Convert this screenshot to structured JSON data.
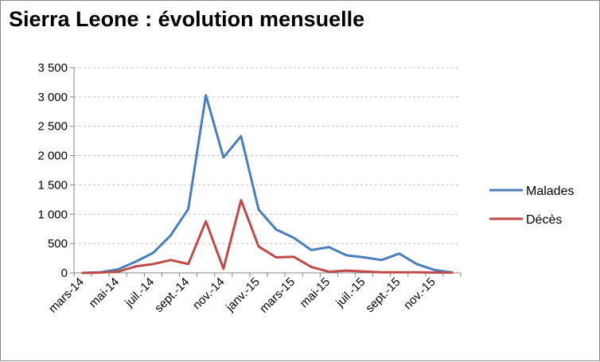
{
  "chart_data": {
    "type": "line",
    "title": "Sierra Leone : évolution mensuelle",
    "xlabel": "",
    "ylabel": "",
    "ylim": [
      0,
      3500
    ],
    "yticks": [
      0,
      500,
      1000,
      1500,
      2000,
      2500,
      3000,
      3500
    ],
    "ytick_labels": [
      "0",
      "500",
      "1 000",
      "1 500",
      "2 000",
      "2 500",
      "3 000",
      "3 500"
    ],
    "grid": true,
    "legend_position": "right",
    "categories": [
      "mars-14",
      "avr.-14",
      "mai-14",
      "juin-14",
      "juil.-14",
      "août-14",
      "sept.-14",
      "oct.-14",
      "nov.-14",
      "déc.-14",
      "janv.-15",
      "févr.-15",
      "mars-15",
      "avr.-15",
      "mai-15",
      "juin-15",
      "juil.-15",
      "août-15",
      "sept.-15",
      "oct.-15",
      "nov.-15",
      "déc.-15"
    ],
    "tick_labels": [
      "mars-14",
      "",
      "mai-14",
      "",
      "juil.-14",
      "",
      "sept.-14",
      "",
      "nov.-14",
      "",
      "janv.-15",
      "",
      "mars-15",
      "",
      "mai-15",
      "",
      "juil.-15",
      "",
      "sept.-15",
      "",
      "nov.-15",
      ""
    ],
    "series": [
      {
        "name": "Malades",
        "color": "#4a7ebb",
        "values": [
          0,
          10,
          60,
          190,
          340,
          640,
          1090,
          3030,
          1970,
          2330,
          1080,
          740,
          600,
          390,
          440,
          300,
          265,
          220,
          330,
          150,
          50,
          10
        ]
      },
      {
        "name": "Décès",
        "color": "#be4b48",
        "values": [
          0,
          5,
          20,
          110,
          150,
          220,
          150,
          880,
          70,
          1240,
          450,
          265,
          275,
          100,
          20,
          40,
          25,
          10,
          10,
          10,
          5,
          5
        ]
      }
    ]
  }
}
